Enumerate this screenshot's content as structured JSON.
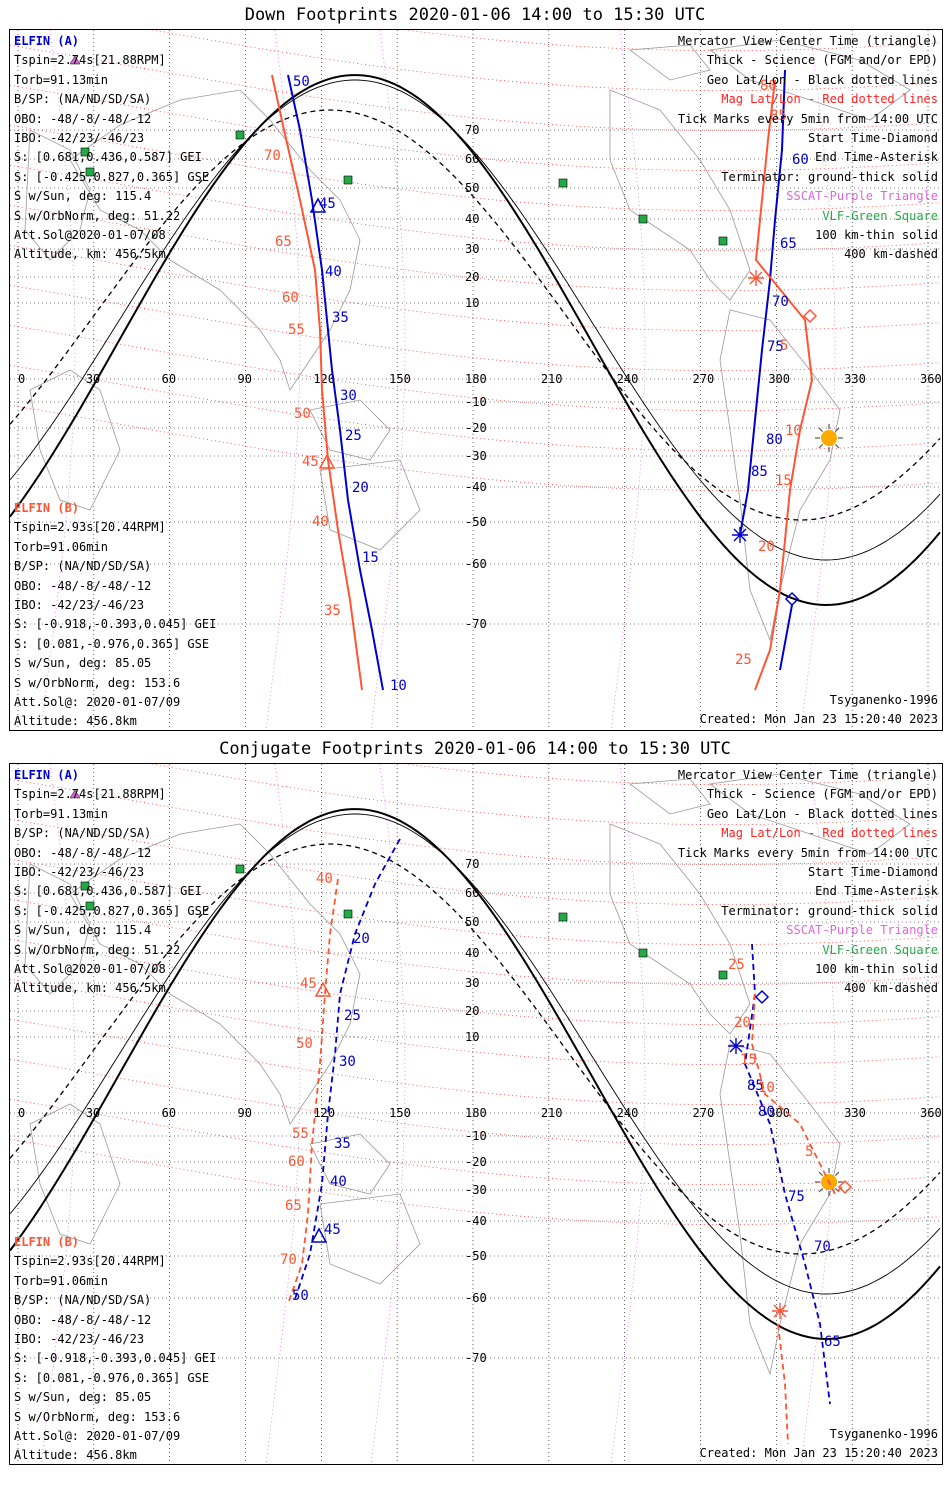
{
  "panels": [
    {
      "title": "Down Footprints 2020-01-06 14:00 to 15:30 UTC",
      "elfin_a": {
        "header": "ELFIN (A)",
        "lines": [
          "Tspin=2.74s[21.88RPM]",
          "Torb=91.13min",
          "B/SP: (NA/ND/SD/SA)",
          "OBO: -48/-8/-48/-12",
          "IBO: -42/23/-46/23",
          "S: [0.681,0.436,0.587] GEI",
          "S: [-0.425,0.827,0.365] GSE",
          "S w/Sun, deg: 115.4",
          "S w/OrbNorm, deg: 51.22",
          "Att.Sol@2020-01-07/08",
          "Altitude, km: 456.5km"
        ]
      },
      "elfin_b": {
        "header": "ELFIN (B)",
        "lines": [
          "Tspin=2.93s[20.44RPM]",
          "Torb=91.06min",
          "B/SP: (NA/ND/SD/SA)",
          "OBO: -48/-8/-48/-12",
          "IBO: -42/23/-46/23",
          "S: [-0.918,-0.393,0.045] GEI",
          "S: [0.081,-0.976,0.365] GSE",
          "S w/Sun, deg: 85.05",
          "S w/OrbNorm, deg: 153.6",
          "Att.Sol@: 2020-01-07/09",
          "Altitude: 456.8km"
        ]
      },
      "legend": {
        "line1": "Mercator View Center Time (triangle)",
        "line2": "Thick - Science (FGM and/or EPD)",
        "line3": "Geo Lat/Lon - Black dotted lines",
        "line4": "Mag Lat/Lon - Red dotted lines",
        "line5": "Tick Marks every 5min from 14:00 UTC",
        "line6": "Start Time-Diamond",
        "line7": "End Time-Asterisk",
        "line8": "Terminator: ground-thick solid",
        "line9": "SSCAT-Purple Triangle",
        "line10": "VLF-Green Square",
        "line11": "100 km-thin solid",
        "line12": "400 km-dashed"
      },
      "model": "Tsyganenko-1996",
      "created": "Created: Mon Jan 23 15:20:40 2023",
      "track_a_labels": [
        "50",
        "45",
        "40",
        "35",
        "30",
        "25",
        "20",
        "15",
        "10",
        "85",
        "80",
        "75",
        "70",
        "65",
        "60"
      ],
      "track_b_labels": [
        "70",
        "65",
        "60",
        "55",
        "50",
        "45",
        "40",
        "35",
        "80",
        "85",
        "5",
        "10",
        "15",
        "20",
        "25"
      ]
    },
    {
      "title": "Conjugate Footprints 2020-01-06 14:00 to 15:30 UTC",
      "elfin_a": {
        "header": "ELFIN (A)",
        "lines": [
          "Tspin=2.74s[21.88RPM]",
          "Torb=91.13min",
          "B/SP: (NA/ND/SD/SA)",
          "OBO: -48/-8/-48/-12",
          "IBO: -42/23/-46/23",
          "S: [0.681,0.436,0.587] GEI",
          "S: [-0.425,0.827,0.365] GSE",
          "S w/Sun, deg: 115.4",
          "S w/OrbNorm, deg: 51.22",
          "Att.Sol@2020-01-07/08",
          "Altitude, km: 456.5km"
        ]
      },
      "elfin_b": {
        "header": "ELFIN (B)",
        "lines": [
          "Tspin=2.93s[20.44RPM]",
          "Torb=91.06min",
          "B/SP: (NA/ND/SD/SA)",
          "OBO: -48/-8/-48/-12",
          "IBO: -42/23/-46/23",
          "S: [-0.918,-0.393,0.045] GEI",
          "S: [0.081,-0.976,0.365] GSE",
          "S w/Sun, deg: 85.05",
          "S w/OrbNorm, deg: 153.6",
          "Att.Sol@: 2020-01-07/09",
          "Altitude: 456.8km"
        ]
      },
      "legend": {
        "line1": "Mercator View Center Time (triangle)",
        "line2": "Thick - Science (FGM and/or EPD)",
        "line3": "Geo Lat/Lon - Black dotted lines",
        "line4": "Mag Lat/Lon - Red dotted lines",
        "line5": "Tick Marks every 5min from 14:00 UTC",
        "line6": "Start Time-Diamond",
        "line7": "End Time-Asterisk",
        "line8": "Terminator: ground-thick solid",
        "line9": "SSCAT-Purple Triangle",
        "line10": "VLF-Green Square",
        "line11": "100 km-thin solid",
        "line12": "400 km-dashed"
      },
      "model": "Tsyganenko-1996",
      "created": "Created: Mon Jan 23 15:20:40 2023",
      "track_a_labels": [
        "20",
        "25",
        "30",
        "35",
        "40",
        "45",
        "50",
        "85",
        "80",
        "75",
        "70",
        "65"
      ],
      "track_b_labels": [
        "40",
        "45",
        "50",
        "55",
        "60",
        "65",
        "70",
        "25",
        "20",
        "15",
        "10",
        "5"
      ]
    }
  ],
  "axes": {
    "lon_ticks": [
      "0",
      "30",
      "60",
      "90",
      "120",
      "150",
      "180",
      "210",
      "240",
      "270",
      "300",
      "330",
      "360"
    ],
    "lat_ticks": [
      "70",
      "60",
      "50",
      "40",
      "30",
      "20",
      "10",
      "-10",
      "-20",
      "-30",
      "-40",
      "-50",
      "-60",
      "-70"
    ]
  },
  "colors": {
    "elfin_a": "#0000cc",
    "elfin_b": "#ff5533",
    "mag_grid": "#ff2222",
    "geo_grid": "#000000",
    "sscat": "#dd66dd",
    "vlf": "#22aa44",
    "sun": "#ffaa00"
  }
}
